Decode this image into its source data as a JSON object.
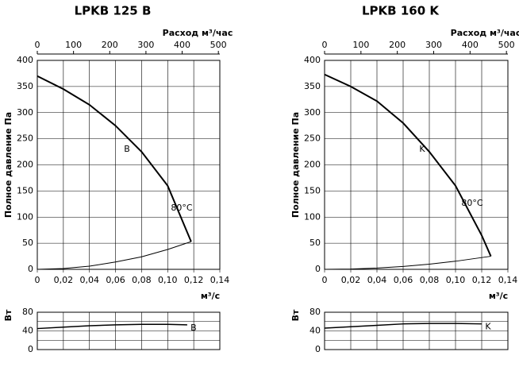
{
  "chart_data": [
    {
      "type": "line",
      "title": "LPKB 125 B",
      "x_label": "м³/с",
      "x2_label": "Расход м³/час",
      "y_label": "Полное давление Па",
      "xlim": [
        0,
        0.14
      ],
      "xticks": [
        0,
        {
          "value": 0.02,
          "label": "0,02"
        },
        {
          "value": 0.04,
          "label": "0,04"
        },
        {
          "value": 0.06,
          "label": "0,06"
        },
        {
          "value": 0.08,
          "label": "0,08"
        },
        {
          "value": 0.1,
          "label": "0,10"
        },
        {
          "value": 0.12,
          "label": "0,12"
        },
        {
          "value": 0.14,
          "label": "0,14"
        }
      ],
      "x2lim": [
        0,
        504
      ],
      "x2ticks": [
        0,
        100,
        200,
        300,
        400,
        500
      ],
      "ylim": [
        0,
        400
      ],
      "yticks": [
        0,
        50,
        100,
        150,
        200,
        250,
        300,
        350,
        400
      ],
      "grid": true,
      "series": [
        {
          "name": "B",
          "color": "#000000",
          "x": [
            0,
            0.02,
            0.04,
            0.06,
            0.08,
            0.1,
            0.118
          ],
          "values": [
            370,
            345,
            315,
            275,
            225,
            160,
            53
          ]
        },
        {
          "name": "80°C",
          "color": "#000000",
          "x": [
            0,
            0.02,
            0.04,
            0.06,
            0.08,
            0.1,
            0.118
          ],
          "values": [
            0,
            1.5,
            6,
            14,
            24,
            38,
            53
          ]
        }
      ]
    },
    {
      "type": "line",
      "y_label": "Вт",
      "xlim": [
        0,
        0.14
      ],
      "grid_x": [
        0,
        0.02,
        0.04,
        0.06,
        0.08,
        0.1,
        0.12,
        0.14
      ],
      "ylim": [
        0,
        80
      ],
      "yticks": [
        0,
        40,
        80
      ],
      "minor_yticks": [
        20,
        60
      ],
      "grid": true,
      "series": [
        {
          "name": "B",
          "color": "#000000",
          "x": [
            0,
            0.02,
            0.04,
            0.06,
            0.08,
            0.1,
            0.115
          ],
          "values": [
            45,
            48,
            51,
            53,
            54,
            54,
            53
          ]
        }
      ]
    },
    {
      "type": "line",
      "title": "LPKB 160 K",
      "x_label": "м³/с",
      "x2_label": "Расход м³/час",
      "y_label": "Полное давление Па",
      "xlim": [
        0,
        0.14
      ],
      "xticks": [
        0,
        {
          "value": 0.02,
          "label": "0,02"
        },
        {
          "value": 0.04,
          "label": "0,04"
        },
        {
          "value": 0.06,
          "label": "0,06"
        },
        {
          "value": 0.08,
          "label": "0,08"
        },
        {
          "value": 0.1,
          "label": "0,10"
        },
        {
          "value": 0.12,
          "label": "0,12"
        },
        {
          "value": 0.14,
          "label": "0,14"
        }
      ],
      "x2lim": [
        0,
        504
      ],
      "x2ticks": [
        0,
        100,
        200,
        300,
        400,
        500
      ],
      "ylim": [
        0,
        400
      ],
      "yticks": [
        0,
        50,
        100,
        150,
        200,
        250,
        300,
        350,
        400
      ],
      "grid": true,
      "series": [
        {
          "name": "K",
          "color": "#000000",
          "x": [
            0,
            0.02,
            0.04,
            0.06,
            0.08,
            0.1,
            0.12,
            0.127
          ],
          "values": [
            373,
            350,
            322,
            280,
            225,
            160,
            65,
            25
          ]
        },
        {
          "name": "80°C",
          "color": "#000000",
          "x": [
            0,
            0.02,
            0.04,
            0.06,
            0.08,
            0.1,
            0.127
          ],
          "values": [
            0,
            0.6,
            2.5,
            5.6,
            9.9,
            15.5,
            25
          ]
        }
      ]
    },
    {
      "type": "line",
      "y_label": "Вт",
      "xlim": [
        0,
        0.14
      ],
      "grid_x": [
        0,
        0.02,
        0.04,
        0.06,
        0.08,
        0.1,
        0.12,
        0.14
      ],
      "ylim": [
        0,
        80
      ],
      "yticks": [
        0,
        40,
        80
      ],
      "minor_yticks": [
        20,
        60
      ],
      "grid": true,
      "series": [
        {
          "name": "K",
          "color": "#000000",
          "x": [
            0,
            0.02,
            0.04,
            0.06,
            0.08,
            0.1,
            0.12
          ],
          "values": [
            46,
            49,
            52,
            55,
            56,
            56,
            55
          ]
        }
      ]
    }
  ]
}
